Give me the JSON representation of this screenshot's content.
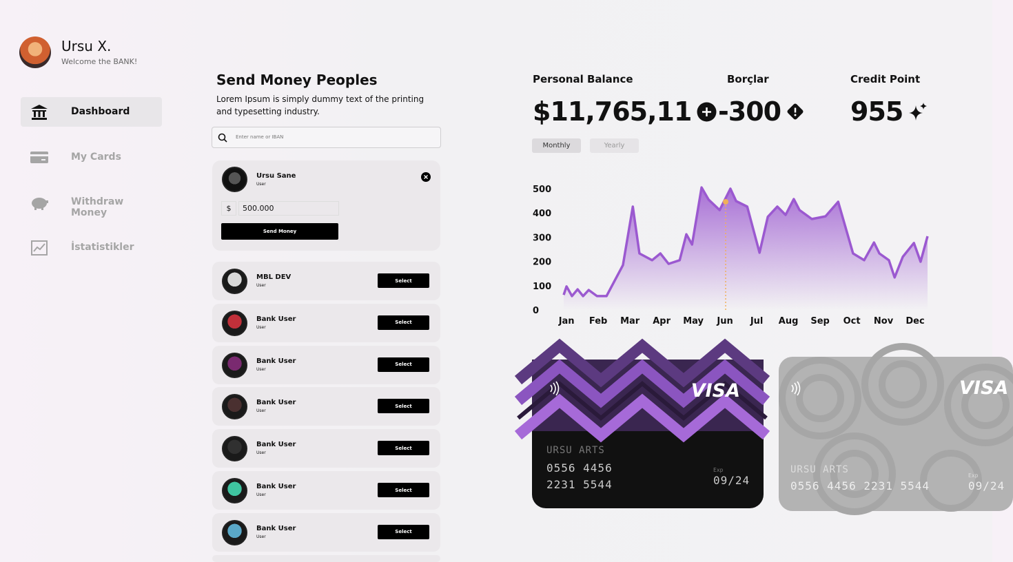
{
  "profile": {
    "name": "Ursu X.",
    "subtitle": "Welcome the BANK!"
  },
  "nav": [
    {
      "label": "Dashboard",
      "active": true
    },
    {
      "label": "My Cards",
      "active": false
    },
    {
      "label": "Withdraw Money",
      "active": false
    },
    {
      "label": "İstatistikler",
      "active": false
    }
  ],
  "send_money": {
    "title": "Send Money Peoples",
    "description": "Lorem Ipsum is simply dummy text of the  printing and typesetting industry.",
    "search_placeholder": "Enter name or IBAN",
    "selected": {
      "name": "Ursu Sane",
      "role": "User",
      "currency": "$",
      "amount": "500.000",
      "button": "Send Money"
    },
    "contacts": [
      {
        "name": "MBL DEV",
        "role": "User",
        "button": "Select",
        "color": "#d8d8d8"
      },
      {
        "name": "Bank User",
        "role": "User",
        "button": "Select",
        "color": "#c0303a"
      },
      {
        "name": "Bank User",
        "role": "User",
        "button": "Select",
        "color": "#7a2a70"
      },
      {
        "name": "Bank User",
        "role": "User",
        "button": "Select",
        "color": "#4a3030"
      },
      {
        "name": "Bank User",
        "role": "User",
        "button": "Select",
        "color": "#303030"
      },
      {
        "name": "Bank User",
        "role": "User",
        "button": "Select",
        "color": "#3fc4a0"
      },
      {
        "name": "Bank User",
        "role": "User",
        "button": "Select",
        "color": "#5aa8c8"
      }
    ]
  },
  "stats": [
    {
      "label": "Personal Balance",
      "value": "$11,765,11"
    },
    {
      "label": "Borçlar",
      "value": "-300"
    },
    {
      "label": "Credit Point",
      "value": "955"
    }
  ],
  "tabs": [
    {
      "label": "Monthly",
      "active": true
    },
    {
      "label": "Yearly",
      "active": false
    }
  ],
  "chart_data": {
    "type": "area",
    "x": [
      -0.09,
      0,
      0.17,
      0.35,
      0.52,
      0.7,
      0.96,
      1.26,
      1.78,
      2.09,
      2.3,
      2.7,
      2.96,
      3.22,
      3.57,
      3.78,
      3.96,
      4.26,
      4.48,
      4.83,
      5.17,
      5.35,
      5.7,
      6.09,
      6.35,
      6.65,
      6.91,
      7.17,
      7.35,
      7.74,
      8.17,
      8.57,
      9.04,
      9.39,
      9.7,
      9.87,
      10.17,
      10.35,
      10.61,
      10.96,
      11.17,
      11.39
    ],
    "series": [
      {
        "color": "#9b59d0",
        "values": [
          62,
          97,
          57,
          85,
          57,
          82,
          57,
          57,
          185,
          426,
          233,
          205,
          233,
          190,
          205,
          312,
          270,
          505,
          455,
          412,
          500,
          449,
          426,
          236,
          384,
          426,
          392,
          457,
          412,
          375,
          386,
          446,
          233,
          205,
          278,
          233,
          205,
          134,
          219,
          276,
          199,
          304
        ]
      }
    ],
    "xlim": [
      -0.09,
      11.39
    ],
    "xticks": [
      {
        "value": 0,
        "label": "Jan"
      },
      {
        "value": 1,
        "label": "Feb"
      },
      {
        "value": 2,
        "label": "Mar"
      },
      {
        "value": 3,
        "label": "Apr"
      },
      {
        "value": 4,
        "label": "May"
      },
      {
        "value": 5,
        "label": "Jun"
      },
      {
        "value": 6,
        "label": "Jul"
      },
      {
        "value": 7,
        "label": "Aug"
      },
      {
        "value": 8,
        "label": "Sep"
      },
      {
        "value": 9,
        "label": "Oct"
      },
      {
        "value": 10,
        "label": "Nov"
      },
      {
        "value": 11,
        "label": "Dec"
      }
    ],
    "ylim": [
      0,
      500
    ],
    "yticks": [
      0,
      100,
      200,
      300,
      400,
      500
    ],
    "grid": false,
    "highlight": {
      "x": 5.02,
      "value": 446,
      "color": "#f0b05a"
    }
  },
  "cards": [
    {
      "brand": "VISA",
      "holder": "URSU ARTS",
      "number_lines": [
        "0556 4456",
        "2231 5544"
      ],
      "exp_label": "Exp",
      "exp": "09/24"
    },
    {
      "brand": "VISA",
      "holder": "URSU ARTS",
      "number_lines": [
        "0556 4456 2231 5544"
      ],
      "exp_label": "Exp",
      "exp": "09/24"
    }
  ]
}
